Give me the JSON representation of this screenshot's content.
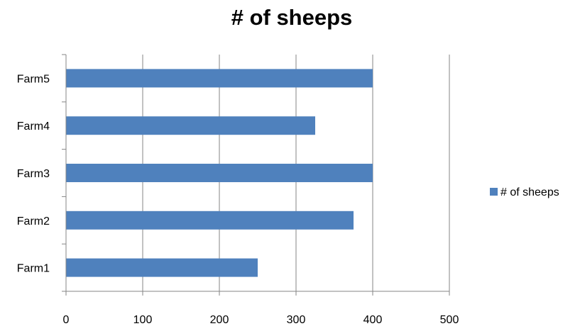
{
  "chart_data": {
    "type": "bar",
    "orientation": "horizontal",
    "title": "# of sheeps",
    "categories": [
      "Farm1",
      "Farm2",
      "Farm3",
      "Farm4",
      "Farm5"
    ],
    "series": [
      {
        "name": "# of sheeps",
        "values": [
          250,
          375,
          400,
          325,
          400
        ],
        "color": "#4f81bd"
      }
    ],
    "xlim": [
      0,
      500
    ],
    "x_ticks": [
      0,
      100,
      200,
      300,
      400,
      500
    ],
    "grid": true,
    "grid_color": "#868686",
    "legend_position": "right"
  }
}
